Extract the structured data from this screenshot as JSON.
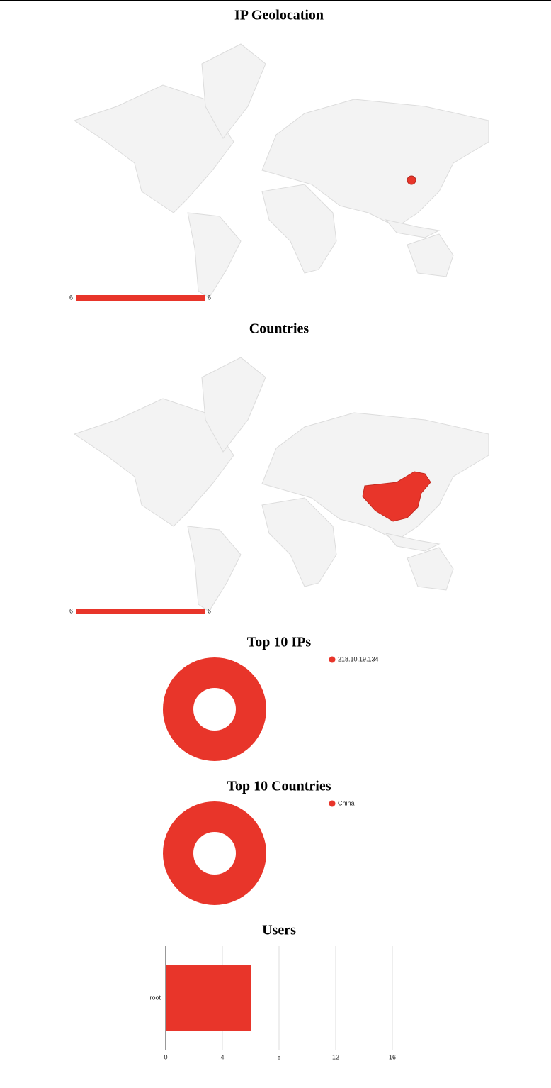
{
  "chart_data": [
    {
      "type": "geo-marker",
      "title": "IP Geolocation",
      "values": [
        6
      ],
      "colorlim": [
        6,
        6
      ],
      "color": "#e8352a"
    },
    {
      "type": "geo-region",
      "title": "Countries",
      "values": [
        6
      ],
      "colorlim": [
        6,
        6
      ],
      "color": "#e8352a"
    },
    {
      "type": "donut",
      "title": "Top 10 IPs",
      "categories": [
        "218.10.19.134"
      ],
      "values": [
        6
      ],
      "color": "#e8352a"
    },
    {
      "type": "donut",
      "title": "Top 10 Countries",
      "categories": [
        "China"
      ],
      "values": [
        6
      ],
      "color": "#e8352a"
    },
    {
      "type": "hbar",
      "title": "Users",
      "categories": [
        "root"
      ],
      "values": [
        6
      ],
      "xlim": [
        0,
        20
      ],
      "xticks": [
        0,
        4,
        8,
        12,
        16
      ],
      "grid": true,
      "color": "#e8352a"
    }
  ]
}
